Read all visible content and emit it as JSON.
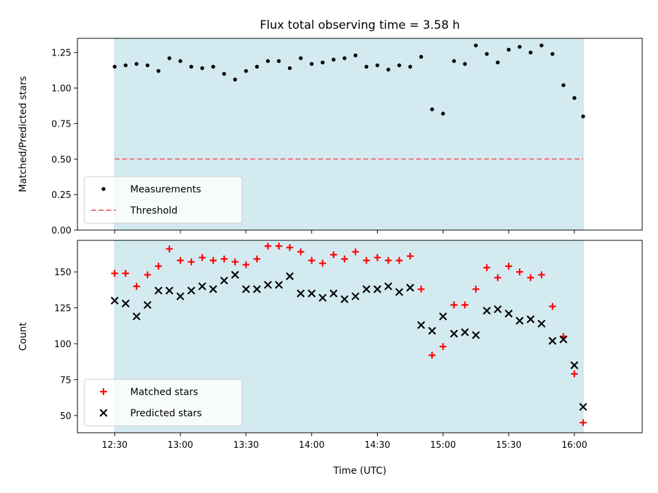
{
  "chart_data": [
    {
      "type": "scatter",
      "title": "Flux total observing time = 3.58 h",
      "xlabel": "",
      "ylabel": "Matched/Predicted stars",
      "ylim": [
        0,
        1.35
      ],
      "yticks": [
        0.0,
        0.25,
        0.5,
        0.75,
        1.0,
        1.25
      ],
      "ytick_labels": [
        "0.00",
        "0.25",
        "0.50",
        "0.75",
        "1.00",
        "1.25"
      ],
      "x_unit": "minutes since 12:30 UTC",
      "xlim": [
        -17,
        241
      ],
      "shaded_span": [
        0,
        214
      ],
      "shaded_color": "#d4eaf1",
      "legend_position": "lower-left",
      "series": [
        {
          "name": "Measurements",
          "marker": "dot",
          "color": "#000000",
          "x": [
            0,
            5,
            10,
            15,
            20,
            25,
            30,
            35,
            40,
            45,
            50,
            55,
            60,
            65,
            70,
            75,
            80,
            85,
            90,
            95,
            100,
            105,
            110,
            115,
            120,
            125,
            130,
            135,
            140,
            145,
            150,
            155,
            160,
            165,
            170,
            175,
            180,
            185,
            190,
            195,
            200,
            205,
            210,
            214
          ],
          "values": [
            1.15,
            1.16,
            1.17,
            1.16,
            1.12,
            1.21,
            1.19,
            1.15,
            1.14,
            1.15,
            1.1,
            1.06,
            1.12,
            1.15,
            1.19,
            1.19,
            1.14,
            1.21,
            1.17,
            1.18,
            1.2,
            1.21,
            1.23,
            1.15,
            1.16,
            1.13,
            1.16,
            1.15,
            1.22,
            0.85,
            0.82,
            1.19,
            1.17,
            1.3,
            1.24,
            1.18,
            1.27,
            1.29,
            1.25,
            1.3,
            1.24,
            1.02,
            0.93,
            0.8
          ]
        },
        {
          "name": "Threshold",
          "marker": "dashed-line",
          "color": "#f07070",
          "x": [
            0,
            214
          ],
          "values": [
            0.5,
            0.5
          ]
        }
      ]
    },
    {
      "type": "scatter",
      "title": "",
      "xlabel": "Time (UTC)",
      "ylabel": "Count",
      "ylim": [
        38,
        172
      ],
      "yticks": [
        50,
        75,
        100,
        125,
        150
      ],
      "ytick_labels": [
        "50",
        "75",
        "100",
        "125",
        "150"
      ],
      "x_unit": "minutes since 12:30 UTC",
      "xlim": [
        -17,
        241
      ],
      "xticks": [
        0,
        30,
        60,
        90,
        120,
        150,
        180,
        210
      ],
      "xtick_labels": [
        "12:30",
        "13:00",
        "13:30",
        "14:00",
        "14:30",
        "15:00",
        "15:30",
        "16:00"
      ],
      "shaded_span": [
        0,
        214
      ],
      "shaded_color": "#d4eaf1",
      "legend_position": "lower-left",
      "series": [
        {
          "name": "Matched stars",
          "marker": "plus",
          "color": "#ff0000",
          "x": [
            0,
            5,
            10,
            15,
            20,
            25,
            30,
            35,
            40,
            45,
            50,
            55,
            60,
            65,
            70,
            75,
            80,
            85,
            90,
            95,
            100,
            105,
            110,
            115,
            120,
            125,
            130,
            135,
            140,
            145,
            150,
            155,
            160,
            165,
            170,
            175,
            180,
            185,
            190,
            195,
            200,
            205,
            210,
            214
          ],
          "values": [
            149,
            149,
            140,
            148,
            154,
            166,
            158,
            157,
            160,
            158,
            159,
            157,
            155,
            159,
            168,
            168,
            167,
            164,
            158,
            156,
            162,
            159,
            164,
            158,
            160,
            158,
            158,
            161,
            138,
            92,
            98,
            127,
            127,
            138,
            153,
            146,
            154,
            150,
            146,
            148,
            126,
            105,
            79,
            45
          ]
        },
        {
          "name": "Predicted stars",
          "marker": "x",
          "color": "#000000",
          "x": [
            0,
            5,
            10,
            15,
            20,
            25,
            30,
            35,
            40,
            45,
            50,
            55,
            60,
            65,
            70,
            75,
            80,
            85,
            90,
            95,
            100,
            105,
            110,
            115,
            120,
            125,
            130,
            135,
            140,
            145,
            150,
            155,
            160,
            165,
            170,
            175,
            180,
            185,
            190,
            195,
            200,
            205,
            210,
            214
          ],
          "values": [
            130,
            128,
            119,
            127,
            137,
            137,
            133,
            137,
            140,
            138,
            144,
            148,
            138,
            138,
            141,
            141,
            147,
            135,
            135,
            132,
            135,
            131,
            133,
            138,
            138,
            140,
            136,
            139,
            113,
            109,
            119,
            107,
            108,
            106,
            123,
            124,
            121,
            116,
            117,
            114,
            102,
            103,
            85,
            56
          ]
        }
      ]
    }
  ]
}
